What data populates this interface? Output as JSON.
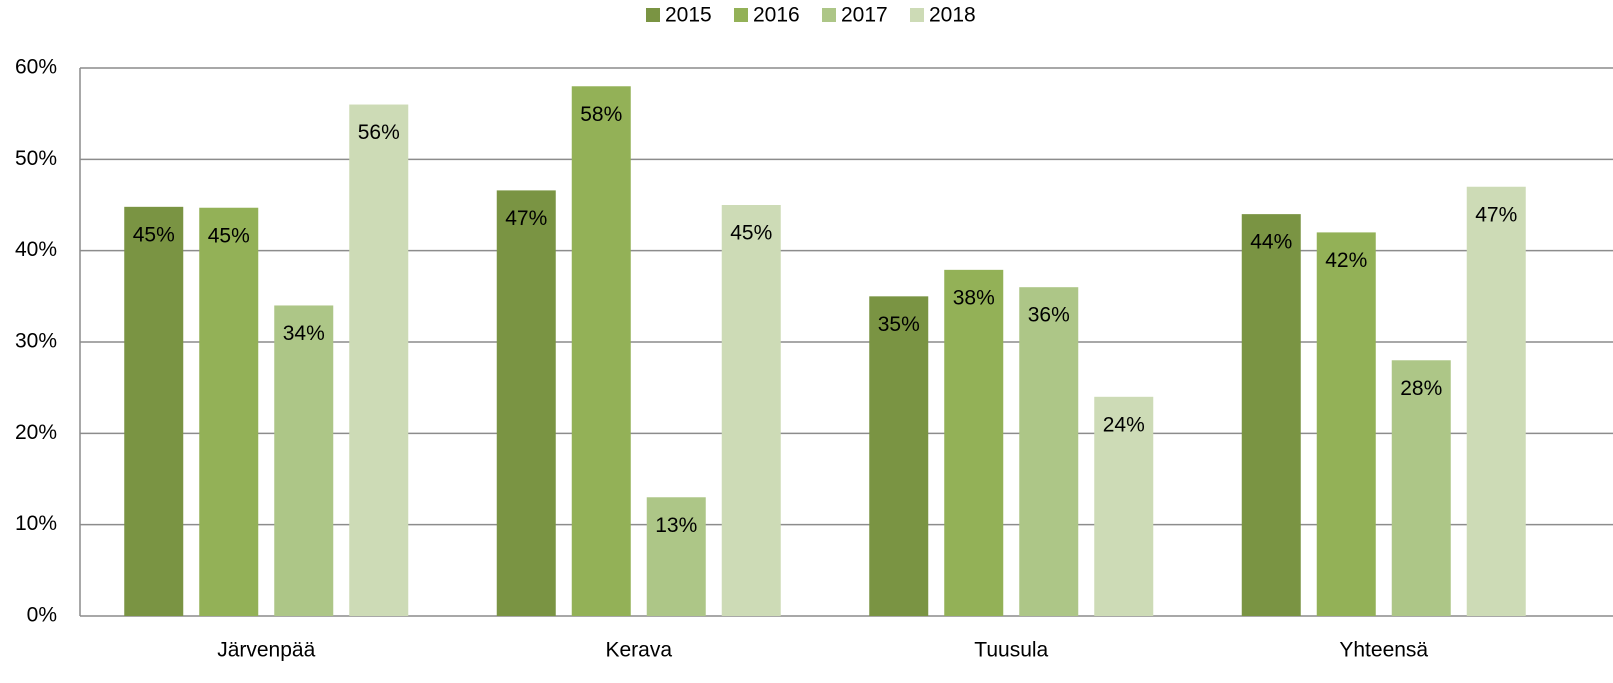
{
  "chart_data": {
    "type": "bar",
    "categories": [
      "Järvenpää",
      "Kerava",
      "Tuusula",
      "Yhteensä"
    ],
    "series": [
      {
        "name": "2015",
        "color": "#7a9443",
        "values": [
          44.8,
          46.6,
          35,
          44
        ],
        "value_labels": [
          "45%",
          "47%",
          "35%",
          "44%"
        ]
      },
      {
        "name": "2016",
        "color": "#93b157",
        "values": [
          44.7,
          58,
          37.9,
          42
        ],
        "value_labels": [
          "45%",
          "58%",
          "38%",
          "42%"
        ]
      },
      {
        "name": "2017",
        "color": "#adc687",
        "values": [
          34,
          13,
          36,
          28
        ],
        "value_labels": [
          "34%",
          "13%",
          "36%",
          "28%"
        ]
      },
      {
        "name": "2018",
        "color": "#cddbb6",
        "values": [
          56,
          45,
          24,
          47
        ],
        "value_labels": [
          "56%",
          "45%",
          "24%",
          "47%"
        ]
      }
    ],
    "ylim": [
      0,
      60
    ],
    "yticks": [
      {
        "value": 0,
        "label": "0%"
      },
      {
        "value": 10,
        "label": "10%"
      },
      {
        "value": 20,
        "label": "20%"
      },
      {
        "value": 30,
        "label": "30%"
      },
      {
        "value": 40,
        "label": "40%"
      },
      {
        "value": 50,
        "label": "50%"
      },
      {
        "value": 60,
        "label": "60%"
      }
    ],
    "grid": true,
    "legend": "top"
  }
}
